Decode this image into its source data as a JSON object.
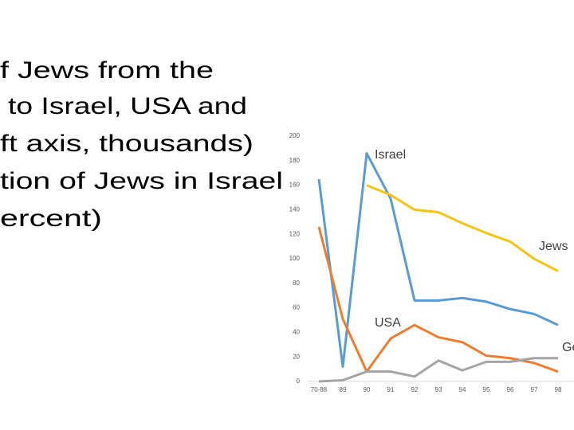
{
  "title_lines": [
    "f Jews from the",
    " to Israel, USA and",
    "ft axis, thousands)",
    "tion of Jews in Israel",
    "ercent)"
  ],
  "chart_data": {
    "type": "line",
    "categories": [
      "70-88",
      "89",
      "90",
      "91",
      "92",
      "93",
      "94",
      "95",
      "96",
      "97",
      "98"
    ],
    "ylim": [
      0,
      200
    ],
    "yticks": [
      0,
      20,
      40,
      60,
      80,
      100,
      120,
      140,
      160,
      180,
      200
    ],
    "series": [
      {
        "name": "Israel",
        "color": "#5b9bd5",
        "values": [
          165,
          12,
          186,
          149,
          66,
          66,
          68,
          65,
          59,
          55,
          46
        ]
      },
      {
        "name": "Jews",
        "color": "#f2c511",
        "values": [
          null,
          null,
          160,
          152,
          140,
          138,
          129,
          121,
          114,
          100,
          90
        ]
      },
      {
        "name": "USA",
        "color": "#ed7d31",
        "values": [
          126,
          51,
          8,
          35,
          46,
          36,
          32,
          21,
          19,
          15,
          8
        ]
      },
      {
        "name": "Ge",
        "color": "#a5a5a5",
        "values": [
          0,
          1,
          8,
          8,
          4,
          17,
          9,
          16,
          16,
          19,
          19
        ]
      }
    ]
  }
}
